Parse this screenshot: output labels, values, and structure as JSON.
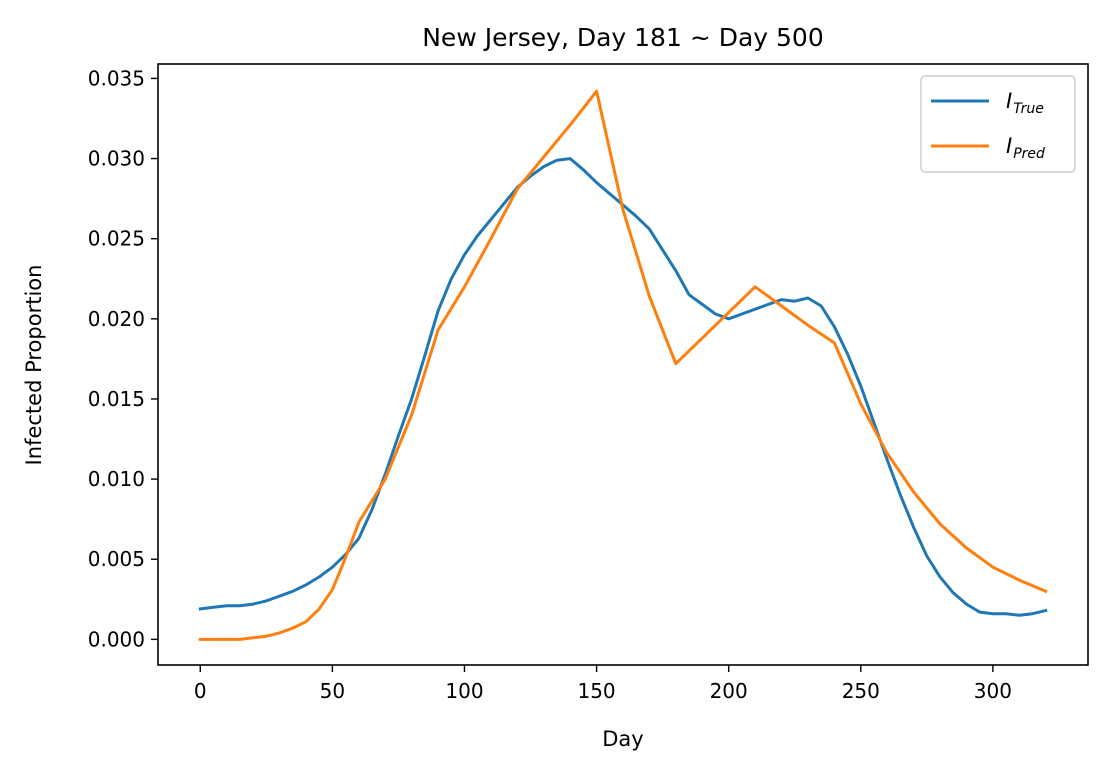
{
  "chart_data": {
    "type": "line",
    "title": "New Jersey, Day 181 ~ Day 500",
    "xlabel": "Day",
    "ylabel": "Infected Proportion",
    "xlim": [
      -16,
      336
    ],
    "ylim": [
      -0.0016,
      0.0359
    ],
    "xticks": [
      0,
      50,
      100,
      150,
      200,
      250,
      300
    ],
    "xtick_labels": [
      "0",
      "50",
      "100",
      "150",
      "200",
      "250",
      "300"
    ],
    "yticks": [
      0.0,
      0.005,
      0.01,
      0.015,
      0.02,
      0.025,
      0.03,
      0.035
    ],
    "ytick_labels": [
      "0.000",
      "0.005",
      "0.010",
      "0.015",
      "0.020",
      "0.025",
      "0.030",
      "0.035"
    ],
    "grid": false,
    "legend_position": "top-right",
    "series": [
      {
        "name": "I",
        "name_sub": "True",
        "color": "#1f77b4",
        "x": [
          0,
          5,
          10,
          15,
          20,
          25,
          30,
          35,
          40,
          45,
          50,
          55,
          60,
          65,
          70,
          75,
          80,
          85,
          90,
          95,
          100,
          105,
          110,
          115,
          120,
          125,
          130,
          135,
          140,
          145,
          150,
          155,
          160,
          165,
          170,
          175,
          180,
          185,
          190,
          195,
          200,
          205,
          210,
          215,
          220,
          225,
          230,
          235,
          240,
          245,
          250,
          255,
          260,
          265,
          270,
          275,
          280,
          285,
          290,
          295,
          300,
          305,
          310,
          315,
          320
        ],
        "y": [
          0.0019,
          0.002,
          0.0021,
          0.0021,
          0.0022,
          0.0024,
          0.0027,
          0.003,
          0.0034,
          0.0039,
          0.0045,
          0.0053,
          0.0063,
          0.0081,
          0.0103,
          0.0127,
          0.015,
          0.0177,
          0.0205,
          0.0225,
          0.024,
          0.0252,
          0.0262,
          0.0272,
          0.0282,
          0.0289,
          0.0295,
          0.0299,
          0.03,
          0.0293,
          0.0285,
          0.0278,
          0.0271,
          0.0264,
          0.0256,
          0.0243,
          0.023,
          0.0215,
          0.0209,
          0.0203,
          0.02,
          0.0203,
          0.0206,
          0.0209,
          0.0212,
          0.0211,
          0.0213,
          0.0208,
          0.0195,
          0.0178,
          0.0158,
          0.0135,
          0.0112,
          0.009,
          0.007,
          0.0052,
          0.0039,
          0.0029,
          0.0022,
          0.0017,
          0.0016,
          0.0016,
          0.0015,
          0.0016,
          0.0018
        ]
      },
      {
        "name": "I",
        "name_sub": "Pred",
        "color": "#ff7f0e",
        "x": [
          0,
          5,
          10,
          15,
          20,
          25,
          30,
          35,
          40,
          45,
          50,
          55,
          60,
          70,
          80,
          90,
          100,
          110,
          120,
          130,
          140,
          150,
          160,
          170,
          180,
          190,
          200,
          210,
          220,
          230,
          240,
          250,
          260,
          270,
          280,
          290,
          300,
          310,
          320
        ],
        "y": [
          0.0,
          0.0,
          0.0,
          0.0,
          0.0001,
          0.0002,
          0.0004,
          0.0007,
          0.0011,
          0.0019,
          0.0031,
          0.0051,
          0.0073,
          0.01,
          0.014,
          0.0193,
          0.022,
          0.025,
          0.0281,
          0.0301,
          0.0321,
          0.0342,
          0.0268,
          0.0214,
          0.0172,
          0.0188,
          0.0204,
          0.022,
          0.0208,
          0.0196,
          0.0185,
          0.0147,
          0.0116,
          0.0092,
          0.0072,
          0.0057,
          0.0045,
          0.0037,
          0.003
        ]
      }
    ]
  }
}
